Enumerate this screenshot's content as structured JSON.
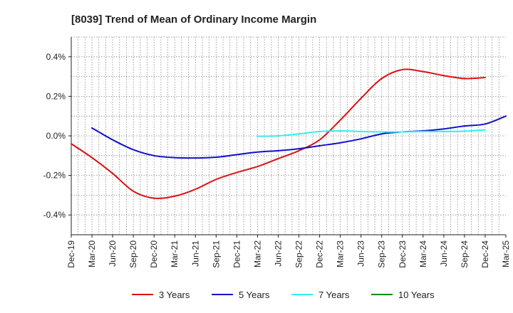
{
  "chart_data": {
    "type": "line",
    "title": "[8039]  Trend of Mean of Ordinary Income Margin",
    "xlabel": "",
    "ylabel": "",
    "ylim": [
      -0.5,
      0.5
    ],
    "yticks": [
      {
        "value": 0.4,
        "label": "0.4%"
      },
      {
        "value": 0.2,
        "label": "0.2%"
      },
      {
        "value": 0.0,
        "label": "0.0%"
      },
      {
        "value": -0.2,
        "label": "-0.2%"
      },
      {
        "value": -0.4,
        "label": "-0.4%"
      }
    ],
    "x_categories": [
      "Dec-19",
      "Mar-20",
      "Jun-20",
      "Sep-20",
      "Dec-20",
      "Mar-21",
      "Jun-21",
      "Sep-21",
      "Dec-21",
      "Mar-22",
      "Jun-22",
      "Sep-22",
      "Dec-22",
      "Mar-23",
      "Jun-23",
      "Sep-23",
      "Dec-23",
      "Mar-24",
      "Jun-24",
      "Sep-24",
      "Dec-24",
      "Mar-25"
    ],
    "grid": true,
    "legend_position": "bottom",
    "series": [
      {
        "name": "3 Years",
        "color": "#dd1111",
        "values": [
          -0.04,
          -0.11,
          -0.19,
          -0.28,
          -0.315,
          -0.305,
          -0.27,
          -0.22,
          -0.185,
          -0.155,
          -0.115,
          -0.075,
          -0.02,
          0.08,
          0.19,
          0.29,
          0.335,
          0.325,
          0.305,
          0.29,
          0.295,
          null
        ]
      },
      {
        "name": "5 Years",
        "color": "#1111cc",
        "values": [
          null,
          0.04,
          -0.02,
          -0.07,
          -0.1,
          -0.11,
          -0.112,
          -0.108,
          -0.095,
          -0.082,
          -0.075,
          -0.065,
          -0.05,
          -0.035,
          -0.015,
          0.01,
          0.02,
          0.025,
          0.035,
          0.05,
          0.06,
          0.1
        ]
      },
      {
        "name": "7 Years",
        "color": "#33eeee",
        "values": [
          null,
          null,
          null,
          null,
          null,
          null,
          null,
          null,
          null,
          -0.002,
          0.0,
          0.01,
          0.022,
          0.025,
          0.022,
          0.02,
          0.02,
          0.022,
          0.022,
          0.024,
          0.03,
          null
        ]
      },
      {
        "name": "10 Years",
        "color": "#118811",
        "values": [
          null,
          null,
          null,
          null,
          null,
          null,
          null,
          null,
          null,
          null,
          null,
          null,
          null,
          null,
          null,
          null,
          null,
          null,
          null,
          null,
          null,
          null
        ]
      }
    ]
  }
}
